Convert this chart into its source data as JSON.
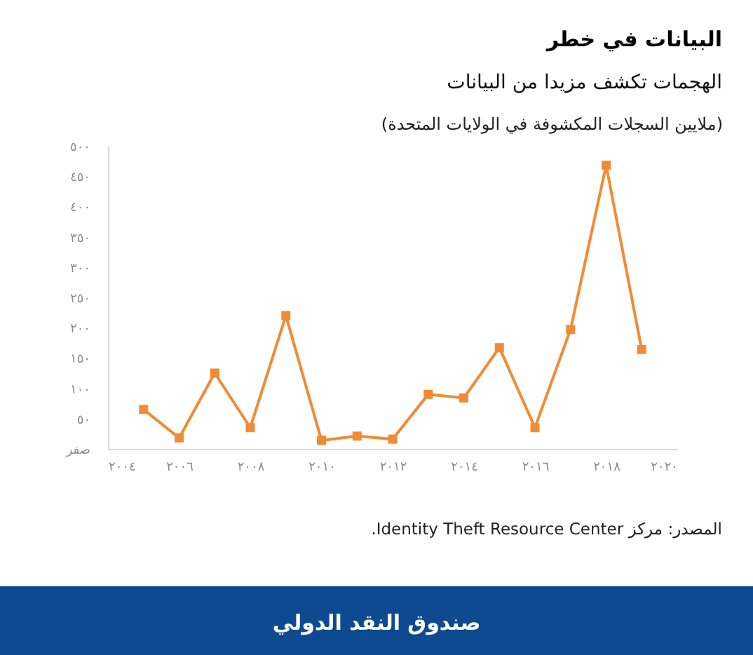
{
  "chart_data": {
    "type": "line",
    "title": "البيانات في خطر",
    "subtitle": "الهجمات تكشف مزيدا من البيانات",
    "ylabel": "(ملايين السجلات المكشوفة في الولايات المتحدة)",
    "x": [
      2005,
      2006,
      2007,
      2008,
      2009,
      2010,
      2011,
      2012,
      2013,
      2014,
      2015,
      2016,
      2017,
      2018,
      2019
    ],
    "series": [
      {
        "color": "#f28a34",
        "values": [
          65,
          18,
          125,
          35,
          220,
          14,
          21,
          16,
          90,
          84,
          167,
          35,
          197,
          468,
          164
        ]
      }
    ],
    "xlim": [
      2004,
      2020
    ],
    "xticks": [
      {
        "value": 2004,
        "label": "٢٠٠٤"
      },
      {
        "value": 2006,
        "label": "٢٠٠٦"
      },
      {
        "value": 2008,
        "label": "٢٠٠٨"
      },
      {
        "value": 2010,
        "label": "٢٠١٠"
      },
      {
        "value": 2012,
        "label": "٢٠١٢"
      },
      {
        "value": 2014,
        "label": "٢٠١٤"
      },
      {
        "value": 2016,
        "label": "٢٠١٦"
      },
      {
        "value": 2018,
        "label": "٢٠١٨"
      },
      {
        "value": 2020,
        "label": "٢٠٢٠"
      }
    ],
    "ylim": [
      0,
      500
    ],
    "yticks": [
      {
        "value": 0,
        "label": "صفر"
      },
      {
        "value": 50,
        "label": "٥٠"
      },
      {
        "value": 100,
        "label": "١٠٠"
      },
      {
        "value": 150,
        "label": "١٥٠"
      },
      {
        "value": 200,
        "label": "٢٠٠"
      },
      {
        "value": 250,
        "label": "٢٥٠"
      },
      {
        "value": 300,
        "label": "٣٠٠"
      },
      {
        "value": 350,
        "label": "٣٥٠"
      },
      {
        "value": 400,
        "label": "٤٠٠"
      },
      {
        "value": 450,
        "label": "٤٥٠"
      },
      {
        "value": 500,
        "label": "٥٠٠"
      }
    ],
    "marker": "square",
    "line_style": "solid",
    "grid": false,
    "annotations": [
      "المصدر: مركز Identity Theft Resource Center.",
      "صندوق النقد الدولي"
    ]
  }
}
